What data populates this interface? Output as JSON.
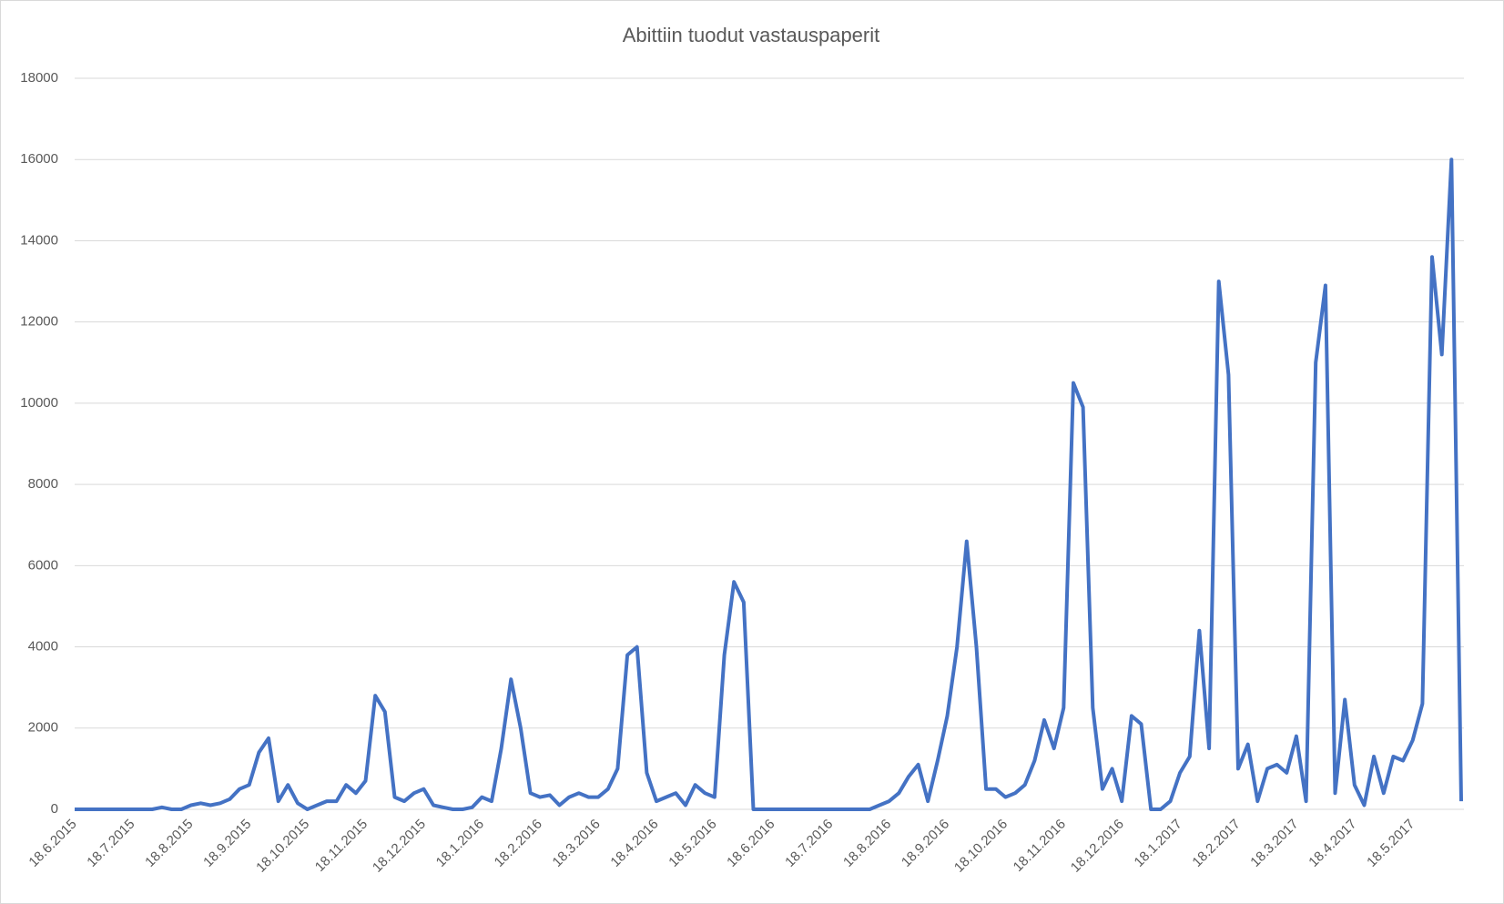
{
  "chart_data": {
    "type": "line",
    "title": "Abittiin tuodut vastauspaperit",
    "categories": [
      "18.6.2015",
      null,
      null,
      null,
      null,
      null,
      "18.7.2015",
      null,
      null,
      null,
      null,
      null,
      "18.8.2015",
      null,
      null,
      null,
      null,
      null,
      "18.9.2015",
      null,
      null,
      null,
      null,
      null,
      "18.10.2015",
      null,
      null,
      null,
      null,
      null,
      "18.11.2015",
      null,
      null,
      null,
      null,
      null,
      "18.12.2015",
      null,
      null,
      null,
      null,
      null,
      "18.1.2016",
      null,
      null,
      null,
      null,
      null,
      "18.2.2016",
      null,
      null,
      null,
      null,
      null,
      "18.3.2016",
      null,
      null,
      null,
      null,
      null,
      "18.4.2016",
      null,
      null,
      null,
      null,
      null,
      "18.5.2016",
      null,
      null,
      null,
      null,
      null,
      "18.6.2016",
      null,
      null,
      null,
      null,
      null,
      "18.7.2016",
      null,
      null,
      null,
      null,
      null,
      "18.8.2016",
      null,
      null,
      null,
      null,
      null,
      "18.9.2016",
      null,
      null,
      null,
      null,
      null,
      "18.10.2016",
      null,
      null,
      null,
      null,
      null,
      "18.11.2016",
      null,
      null,
      null,
      null,
      null,
      "18.12.2016",
      null,
      null,
      null,
      null,
      null,
      "18.1.2017",
      null,
      null,
      null,
      null,
      null,
      "18.2.2017",
      null,
      null,
      null,
      null,
      null,
      "18.3.2017",
      null,
      null,
      null,
      null,
      null,
      "18.4.2017",
      null,
      null,
      null,
      null,
      null,
      "18.5.2017",
      null,
      null,
      null,
      null,
      null
    ],
    "series": [
      {
        "color": "#4472c4",
        "values": [
          0,
          0,
          0,
          0,
          0,
          0,
          0,
          0,
          0,
          50,
          0,
          0,
          100,
          150,
          100,
          150,
          250,
          500,
          600,
          1400,
          1750,
          200,
          600,
          150,
          0,
          100,
          200,
          200,
          600,
          400,
          700,
          2800,
          2400,
          300,
          200,
          400,
          500,
          100,
          50,
          0,
          0,
          50,
          300,
          200,
          1500,
          3200,
          2000,
          400,
          300,
          350,
          100,
          300,
          400,
          300,
          300,
          500,
          1000,
          3800,
          4000,
          900,
          200,
          300,
          400,
          100,
          600,
          400,
          300,
          3800,
          5600,
          5100,
          0,
          0,
          0,
          0,
          0,
          0,
          0,
          0,
          0,
          0,
          0,
          0,
          0,
          100,
          200,
          400,
          800,
          1100,
          200,
          1200,
          2300,
          4000,
          6600,
          4000,
          500,
          500,
          300,
          400,
          600,
          1200,
          2200,
          1500,
          2500,
          10500,
          9900,
          2500,
          500,
          1000,
          200,
          2300,
          2100,
          0,
          0,
          200,
          900,
          1300,
          4400,
          1500,
          13000,
          10700,
          1000,
          1600,
          200,
          1000,
          1100,
          900,
          1800,
          200,
          11000,
          12900,
          400,
          2700,
          600,
          100,
          1300,
          400,
          1300,
          1200,
          1700,
          2600,
          13600,
          11200,
          16000,
          200
        ]
      }
    ],
    "ylim": [
      0,
      18000
    ],
    "yticks": [
      0,
      2000,
      4000,
      6000,
      8000,
      10000,
      12000,
      14000,
      16000,
      18000
    ],
    "grid": true
  }
}
